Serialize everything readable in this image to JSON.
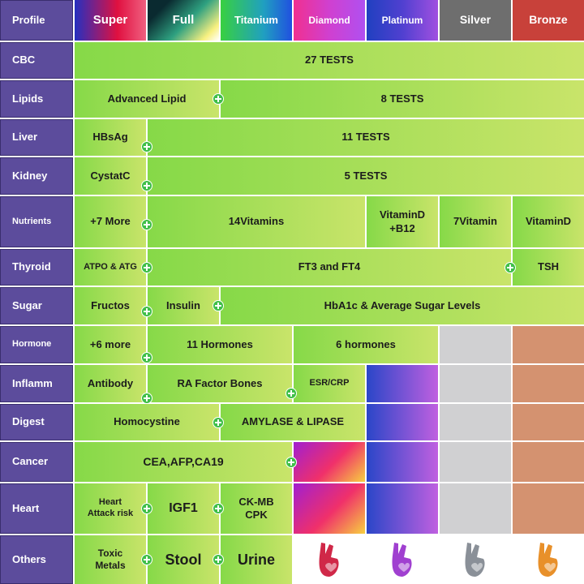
{
  "header": {
    "label": "Profile",
    "tiers": [
      "Super",
      "Full",
      "Titanium",
      "Diamond",
      "Platinum",
      "Silver",
      "Bronze"
    ]
  },
  "rows": [
    {
      "label": "CBC",
      "cells": [
        "27 TESTS"
      ]
    },
    {
      "label": "Lipids",
      "cells": [
        "Advanced Lipid",
        "8 TESTS"
      ]
    },
    {
      "label": "Liver",
      "cells": [
        "HBsAg",
        "11 TESTS"
      ]
    },
    {
      "label": "Kidney",
      "cells": [
        "CystatC",
        "5 TESTS"
      ]
    },
    {
      "label": "Nutrients",
      "cells": [
        "+7 More",
        "14Vitamins",
        "VitaminD\n+B12",
        "7Vitamin",
        "VitaminD"
      ]
    },
    {
      "label": "Thyroid",
      "cells": [
        "ATPO & ATG",
        "FT3 and FT4",
        "TSH"
      ]
    },
    {
      "label": "Sugar",
      "cells": [
        "Fructos",
        "Insulin",
        "HbA1c & Average Sugar Levels"
      ]
    },
    {
      "label": "Hormone",
      "cells": [
        "+6 more",
        "11 Hormones",
        "6 hormones"
      ]
    },
    {
      "label": "Inflamm",
      "cells": [
        "Antibody",
        "RA Factor Bones",
        "ESR/CRP"
      ]
    },
    {
      "label": "Digest",
      "cells": [
        "Homocystine",
        "AMYLASE & LIPASE"
      ]
    },
    {
      "label": "Cancer",
      "cells": [
        "CEA,AFP,CA19"
      ]
    },
    {
      "label": "Heart",
      "cells": [
        "Heart\nAttack risk",
        "IGF1",
        "CK-MB\nCPK"
      ]
    },
    {
      "label": "Others",
      "cells": [
        "Toxic\nMetals",
        "Stool",
        "Urine"
      ]
    }
  ]
}
